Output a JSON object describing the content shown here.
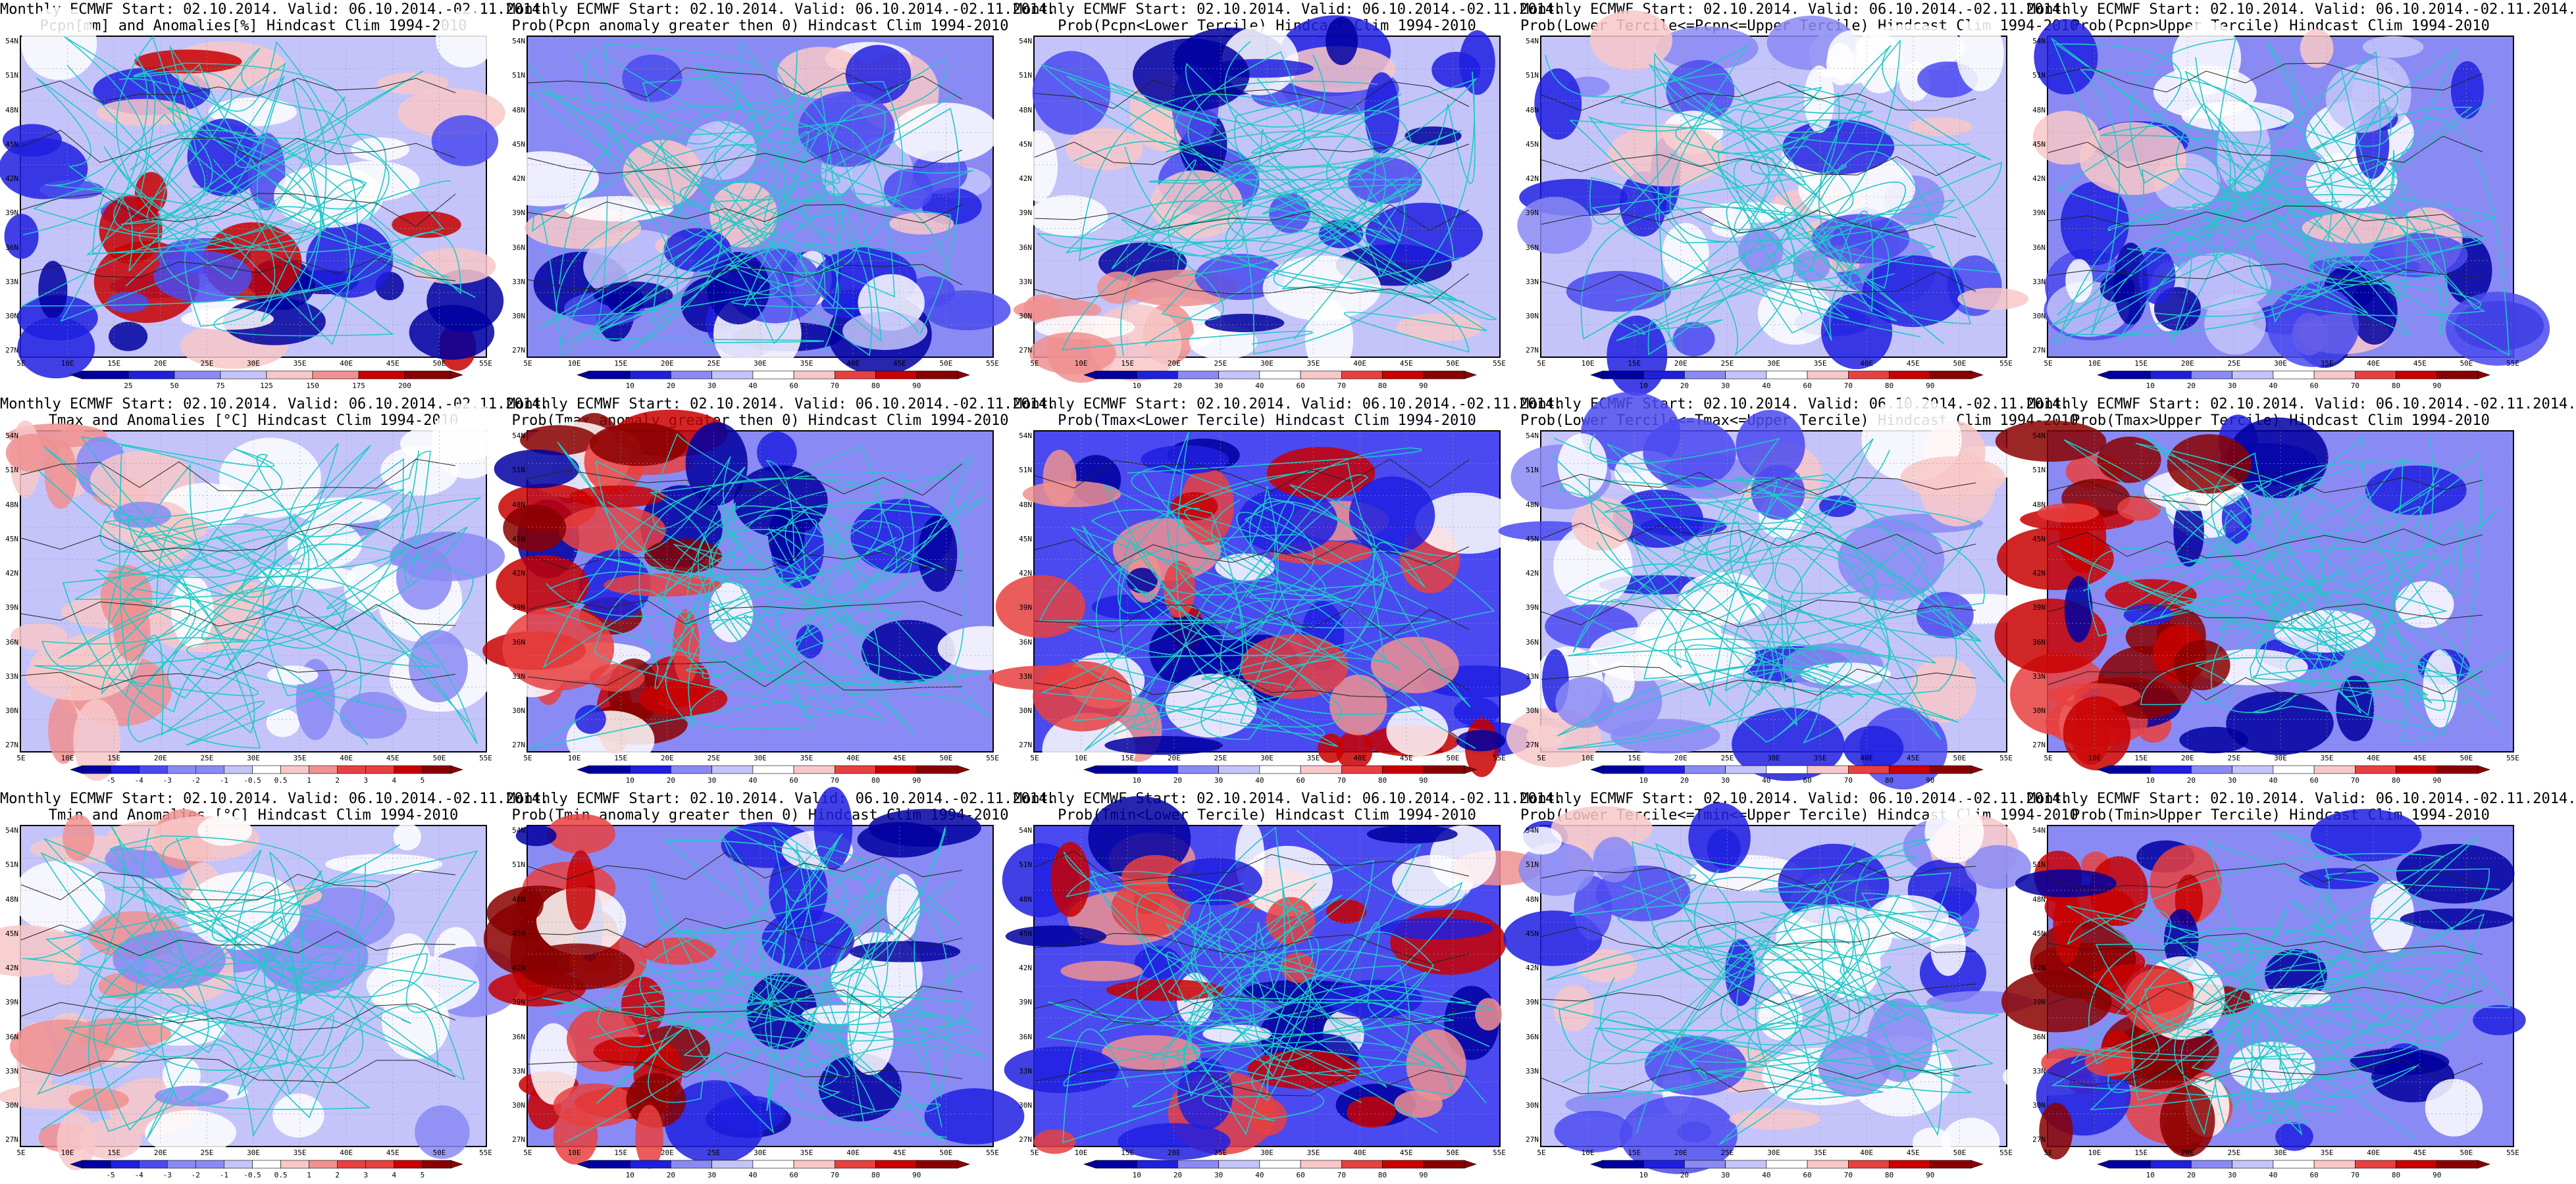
{
  "legend_palette": [
    "#0000a0",
    "#1f1fe0",
    "#4a4af0",
    "#8a8af5",
    "#c4c4fa",
    "#ffffff",
    "#f8c8c8",
    "#f09090",
    "#e84040",
    "#c80000",
    "#8a0000"
  ],
  "lat_ticks": [
    "54N",
    "51N",
    "48N",
    "45N",
    "42N",
    "39N",
    "36N",
    "33N",
    "30N",
    "27N"
  ],
  "lon_ticks": [
    "5E",
    "10E",
    "15E",
    "20E",
    "25E",
    "30E",
    "35E",
    "40E",
    "45E",
    "50E",
    "55E"
  ],
  "scales": {
    "pcpn_anom": [
      "25",
      "50",
      "75",
      "125",
      "150",
      "175",
      "200"
    ],
    "prob": [
      "10",
      "20",
      "30",
      "40",
      "60",
      "70",
      "80",
      "90"
    ],
    "temp_anom": [
      "-5",
      "-4",
      "-3",
      "-2",
      "-1",
      "-0.5",
      "0.5",
      "1",
      "2",
      "3",
      "4",
      "5"
    ]
  },
  "panels": [
    {
      "line1": "Monthly ECMWF Start: 02.10.2014. Valid: 06.10.2014.-02.11.2014.",
      "line2": "Pcpn[mm] and Anomalies[%] Hindcast Clim 1994-2010",
      "scale": "pcpn_anom",
      "tone": "mixed_wet"
    },
    {
      "line1": "Monthly ECMWF Start: 02.10.2014. Valid: 06.10.2014.-02.11.2014.",
      "line2": "Prob(Pcpn anomaly greater then 0) Hindcast Clim 1994-2010",
      "scale": "prob",
      "tone": "blue"
    },
    {
      "line1": "Monthly ECMWF Start: 02.10.2014. Valid: 06.10.2014.-02.11.2014.",
      "line2": "Prob(Pcpn<Lower Tercile) Hindcast Clim 1994-2010",
      "scale": "prob",
      "tone": "mixed_red_south"
    },
    {
      "line1": "Monthly ECMWF Start: 02.10.2014. Valid: 06.10.2014.-02.11.2014.",
      "line2": "Prob(Lower Tercile<=Pcpn<=Upper Tercile) Hindcast Clim 1994-2010",
      "scale": "prob",
      "tone": "blue_light"
    },
    {
      "line1": "Monthly ECMWF Start: 02.10.2014. Valid: 06.10.2014.-02.11.2014.",
      "line2": "Prob(Pcpn>Upper Tercile) Hindcast Clim 1994-2010",
      "scale": "prob",
      "tone": "blue"
    },
    {
      "line1": "Monthly ECMWF Start: 02.10.2014. Valid: 06.10.2014.-02.11.2014.",
      "line2": "Tmax and Anomalies [°C] Hindcast Clim 1994-2010",
      "scale": "temp_anom",
      "tone": "warm_west"
    },
    {
      "line1": "Monthly ECMWF Start: 02.10.2014. Valid: 06.10.2014.-02.11.2014.",
      "line2": "Prob(Tmax anomaly greater then 0) Hindcast Clim 1994-2010",
      "scale": "prob",
      "tone": "red_west"
    },
    {
      "line1": "Monthly ECMWF Start: 02.10.2014. Valid: 06.10.2014.-02.11.2014.",
      "line2": "Prob(Tmax<Lower Tercile) Hindcast Clim 1994-2010",
      "scale": "prob",
      "tone": "blue_red_center"
    },
    {
      "line1": "Monthly ECMWF Start: 02.10.2014. Valid: 06.10.2014.-02.11.2014.",
      "line2": "Prob(Lower Tercile<=Tmax<=Upper Tercile) Hindcast Clim 1994-2010",
      "scale": "prob",
      "tone": "blue_light"
    },
    {
      "line1": "Monthly ECMWF Start: 02.10.2014. Valid: 06.10.2014.-02.11.2014.",
      "line2": "Prob(Tmax>Upper Tercile) Hindcast Clim 1994-2010",
      "scale": "prob",
      "tone": "red_west"
    },
    {
      "line1": "Monthly ECMWF Start: 02.10.2014. Valid: 06.10.2014.-02.11.2014.",
      "line2": "Tmin and Anomalies [°C] Hindcast Clim 1994-2010",
      "scale": "temp_anom",
      "tone": "warm_west"
    },
    {
      "line1": "Monthly ECMWF Start: 02.10.2014. Valid: 06.10.2014.-02.11.2014.",
      "line2": "Prob(Tmin anomaly greater then 0) Hindcast Clim 1994-2010",
      "scale": "prob",
      "tone": "red_west"
    },
    {
      "line1": "Monthly ECMWF Start: 02.10.2014. Valid: 06.10.2014.-02.11.2014.",
      "line2": "Prob(Tmin<Lower Tercile) Hindcast Clim 1994-2010",
      "scale": "prob",
      "tone": "blue_red_center"
    },
    {
      "line1": "Monthly ECMWF Start: 02.10.2014. Valid: 06.10.2014.-02.11.2014.",
      "line2": "Prob(Lower Tercile<=Tmin<=Upper Tercile) Hindcast Clim 1994-2010",
      "scale": "prob",
      "tone": "blue_light"
    },
    {
      "line1": "Monthly ECMWF Start: 02.10.2014. Valid: 06.10.2014.-02.11.2014.",
      "line2": "Prob(Tmin>Upper Tercile) Hindcast Clim 1994-2010",
      "scale": "prob",
      "tone": "red_west"
    }
  ]
}
